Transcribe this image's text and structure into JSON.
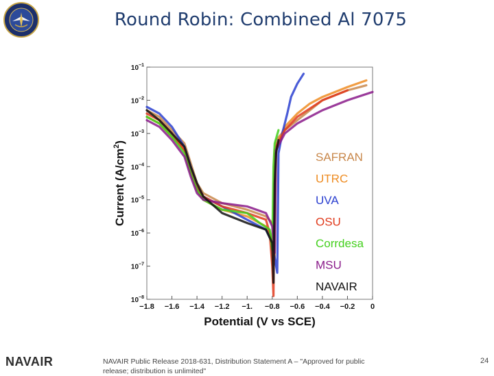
{
  "slide": {
    "title": "Round Robin: Combined Al 7075",
    "footer_brand": "NAVAIR",
    "footer_note": "NAVAIR Public Release 2018-631, Distribution Statement A – \"Approved for public release; distribution is unlimited\"",
    "page_number": "24"
  },
  "chart_data": {
    "type": "line",
    "title": "",
    "xlabel": "Potential (V vs SCE)",
    "ylabel_main": "Current (A/cm",
    "ylabel_sup": "2",
    "ylabel_end": ")",
    "xlim": [
      -1.8,
      0
    ],
    "ylim_log10": [
      -8,
      -1
    ],
    "x_ticks": [
      {
        "v": -1.8,
        "label": "−1.8"
      },
      {
        "v": -1.6,
        "label": "−1.6"
      },
      {
        "v": -1.4,
        "label": "−1.4"
      },
      {
        "v": -1.2,
        "label": "−1.2"
      },
      {
        "v": -1.0,
        "label": "−1."
      },
      {
        "v": -0.8,
        "label": "−0.8"
      },
      {
        "v": -0.6,
        "label": "−0.6"
      },
      {
        "v": -0.4,
        "label": "−0.4"
      },
      {
        "v": -0.2,
        "label": "−0.2"
      },
      {
        "v": 0,
        "label": "0"
      }
    ],
    "y_ticks": [
      {
        "e": -1,
        "base": "10",
        "exp": "−1"
      },
      {
        "e": -2,
        "base": "10",
        "exp": "−2"
      },
      {
        "e": -3,
        "base": "10",
        "exp": "−3"
      },
      {
        "e": -4,
        "base": "10",
        "exp": "−4"
      },
      {
        "e": -5,
        "base": "10",
        "exp": "−5"
      },
      {
        "e": -6,
        "base": "10",
        "exp": "−6"
      },
      {
        "e": -7,
        "base": "10",
        "exp": "−7"
      },
      {
        "e": -8,
        "base": "10",
        "exp": "−8"
      }
    ],
    "legend_position": "right",
    "series": [
      {
        "name": "SAFRAN",
        "color": "#c8874a",
        "points": [
          [
            -1.8,
            -2.3
          ],
          [
            -1.7,
            -2.5
          ],
          [
            -1.6,
            -2.9
          ],
          [
            -1.5,
            -3.3
          ],
          [
            -1.45,
            -3.9
          ],
          [
            -1.4,
            -4.5
          ],
          [
            -1.35,
            -4.8
          ],
          [
            -1.2,
            -5.1
          ],
          [
            -1.0,
            -5.3
          ],
          [
            -0.85,
            -5.5
          ],
          [
            -0.8,
            -5.7
          ],
          [
            -0.78,
            -6.4
          ],
          [
            -0.77,
            -3.2
          ],
          [
            -0.7,
            -2.9
          ],
          [
            -0.6,
            -2.6
          ],
          [
            -0.5,
            -2.3
          ],
          [
            -0.4,
            -2.0
          ],
          [
            -0.2,
            -1.7
          ],
          [
            -0.05,
            -1.55
          ]
        ]
      },
      {
        "name": "UTRC",
        "color": "#ee8c22",
        "points": [
          [
            -1.8,
            -2.5
          ],
          [
            -1.7,
            -2.7
          ],
          [
            -1.6,
            -3.1
          ],
          [
            -1.5,
            -3.5
          ],
          [
            -1.45,
            -4.2
          ],
          [
            -1.4,
            -4.7
          ],
          [
            -1.35,
            -5.0
          ],
          [
            -1.2,
            -5.3
          ],
          [
            -1.0,
            -5.5
          ],
          [
            -0.85,
            -5.8
          ],
          [
            -0.8,
            -6.2
          ],
          [
            -0.78,
            -6.8
          ],
          [
            -0.77,
            -3.4
          ],
          [
            -0.7,
            -2.8
          ],
          [
            -0.6,
            -2.4
          ],
          [
            -0.5,
            -2.1
          ],
          [
            -0.4,
            -1.9
          ],
          [
            -0.2,
            -1.6
          ],
          [
            -0.05,
            -1.4
          ]
        ]
      },
      {
        "name": "UVA",
        "color": "#2a3fd0",
        "points": [
          [
            -1.8,
            -2.2
          ],
          [
            -1.7,
            -2.4
          ],
          [
            -1.6,
            -2.8
          ],
          [
            -1.5,
            -3.4
          ],
          [
            -1.45,
            -4.0
          ],
          [
            -1.4,
            -4.6
          ],
          [
            -1.35,
            -4.9
          ],
          [
            -1.2,
            -5.2
          ],
          [
            -1.0,
            -5.6
          ],
          [
            -0.85,
            -5.9
          ],
          [
            -0.8,
            -6.3
          ],
          [
            -0.76,
            -7.2
          ],
          [
            -0.75,
            -3.6
          ],
          [
            -0.72,
            -3.0
          ],
          [
            -0.68,
            -2.4
          ],
          [
            -0.65,
            -1.9
          ],
          [
            -0.6,
            -1.5
          ],
          [
            -0.55,
            -1.2
          ]
        ]
      },
      {
        "name": "OSU",
        "color": "#e03a1c",
        "points": [
          [
            -1.8,
            -2.4
          ],
          [
            -1.7,
            -2.6
          ],
          [
            -1.6,
            -3.0
          ],
          [
            -1.5,
            -3.5
          ],
          [
            -1.45,
            -4.1
          ],
          [
            -1.4,
            -4.6
          ],
          [
            -1.35,
            -4.9
          ],
          [
            -1.2,
            -5.2
          ],
          [
            -1.0,
            -5.4
          ],
          [
            -0.85,
            -5.6
          ],
          [
            -0.82,
            -6.0
          ],
          [
            -0.8,
            -7.0
          ],
          [
            -0.79,
            -7.9
          ],
          [
            -0.78,
            -3.5
          ],
          [
            -0.7,
            -2.9
          ],
          [
            -0.6,
            -2.5
          ],
          [
            -0.4,
            -2.0
          ],
          [
            -0.2,
            -1.7
          ]
        ]
      },
      {
        "name": "Corrdesa",
        "color": "#44d01e",
        "points": [
          [
            -1.8,
            -2.5
          ],
          [
            -1.7,
            -2.7
          ],
          [
            -1.6,
            -3.1
          ],
          [
            -1.5,
            -3.6
          ],
          [
            -1.45,
            -4.2
          ],
          [
            -1.4,
            -4.7
          ],
          [
            -1.35,
            -5.0
          ],
          [
            -1.2,
            -5.3
          ],
          [
            -1.0,
            -5.4
          ],
          [
            -0.9,
            -5.7
          ],
          [
            -0.82,
            -5.9
          ],
          [
            -0.8,
            -6.5
          ],
          [
            -0.79,
            -4.0
          ],
          [
            -0.78,
            -3.3
          ],
          [
            -0.75,
            -2.9
          ]
        ]
      },
      {
        "name": "MSU",
        "color": "#8a1a8a",
        "points": [
          [
            -1.8,
            -2.6
          ],
          [
            -1.7,
            -2.8
          ],
          [
            -1.6,
            -3.2
          ],
          [
            -1.5,
            -3.7
          ],
          [
            -1.45,
            -4.3
          ],
          [
            -1.4,
            -4.8
          ],
          [
            -1.35,
            -5.0
          ],
          [
            -1.2,
            -5.1
          ],
          [
            -1.0,
            -5.2
          ],
          [
            -0.85,
            -5.4
          ],
          [
            -0.8,
            -5.8
          ],
          [
            -0.78,
            -6.6
          ],
          [
            -0.77,
            -3.5
          ],
          [
            -0.7,
            -3.0
          ],
          [
            -0.6,
            -2.7
          ],
          [
            -0.5,
            -2.5
          ],
          [
            -0.4,
            -2.3
          ],
          [
            -0.2,
            -2.0
          ],
          [
            0.0,
            -1.75
          ]
        ]
      },
      {
        "name": "NAVAIR",
        "color": "#111111",
        "points": [
          [
            -1.8,
            -2.3
          ],
          [
            -1.7,
            -2.6
          ],
          [
            -1.6,
            -3.0
          ],
          [
            -1.5,
            -3.4
          ],
          [
            -1.45,
            -4.0
          ],
          [
            -1.4,
            -4.5
          ],
          [
            -1.35,
            -4.9
          ],
          [
            -1.2,
            -5.4
          ],
          [
            -1.0,
            -5.7
          ],
          [
            -0.85,
            -5.9
          ],
          [
            -0.8,
            -6.3
          ],
          [
            -0.79,
            -7.5
          ],
          [
            -0.78,
            -4.5
          ],
          [
            -0.77,
            -3.6
          ],
          [
            -0.75,
            -3.2
          ]
        ]
      }
    ]
  }
}
